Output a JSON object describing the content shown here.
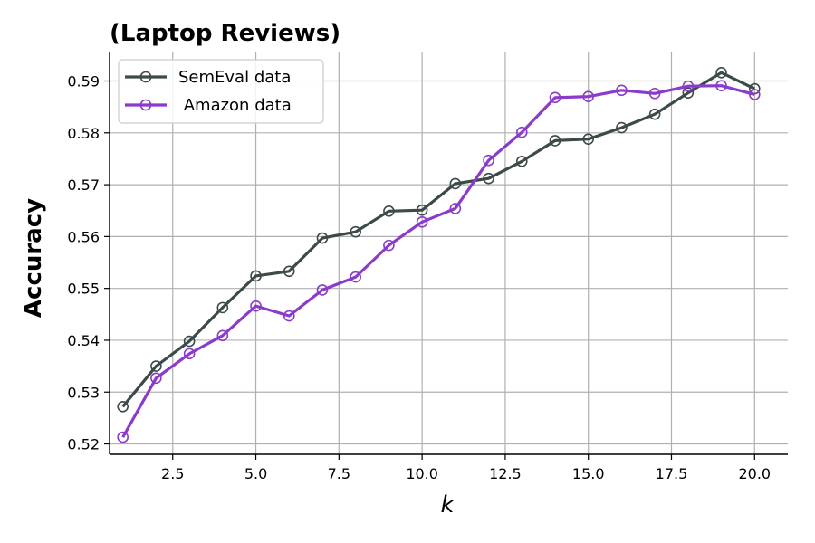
{
  "chart_data": {
    "type": "line",
    "title": "(Laptop Reviews)",
    "xlabel": "k",
    "ylabel": "Accuracy",
    "xlim": [
      0.6,
      21.0
    ],
    "ylim": [
      0.518,
      0.5955
    ],
    "xticks": [
      2.5,
      5.0,
      7.5,
      10.0,
      12.5,
      15.0,
      17.5,
      20.0
    ],
    "xtick_labels": [
      "2.5",
      "5.0",
      "7.5",
      "10.0",
      "12.5",
      "15.0",
      "17.5",
      "20.0"
    ],
    "yticks": [
      0.52,
      0.53,
      0.54,
      0.55,
      0.56,
      0.57,
      0.58,
      0.59
    ],
    "ytick_labels": [
      "0.52",
      "0.53",
      "0.54",
      "0.55",
      "0.56",
      "0.57",
      "0.58",
      "0.59"
    ],
    "grid": true,
    "legend_position": "top-left",
    "x": [
      1,
      2,
      3,
      4,
      5,
      6,
      7,
      8,
      9,
      10,
      11,
      12,
      13,
      14,
      15,
      16,
      17,
      18,
      19,
      20
    ],
    "series": [
      {
        "name": "SemEval data",
        "color": "#3d4a4a",
        "marker": "circle-open",
        "values": [
          0.5272,
          0.535,
          0.5398,
          0.5463,
          0.5524,
          0.5533,
          0.5597,
          0.5609,
          0.5649,
          0.5651,
          0.5702,
          0.5712,
          0.5745,
          0.5785,
          0.5788,
          0.581,
          0.5836,
          0.5877,
          0.5916,
          0.5885
        ]
      },
      {
        "name": " Amazon data",
        "color": "#8b3bc9",
        "marker": "circle-open",
        "values": [
          0.5213,
          0.5327,
          0.5374,
          0.5409,
          0.5466,
          0.5447,
          0.5497,
          0.5522,
          0.5583,
          0.5628,
          0.5654,
          0.5747,
          0.5801,
          0.5868,
          0.587,
          0.5882,
          0.5876,
          0.589,
          0.5891,
          0.5874
        ]
      }
    ]
  }
}
